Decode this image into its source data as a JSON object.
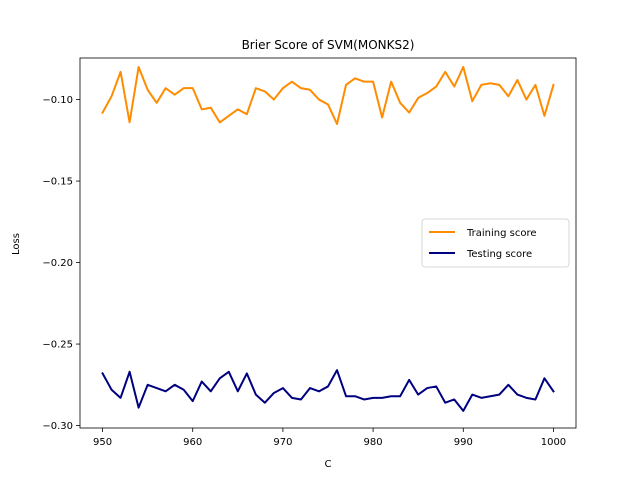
{
  "chart_data": {
    "type": "line",
    "title": "Brier Score of SVM(MONKS2)",
    "xlabel": "C",
    "ylabel": "Loss",
    "xlim": [
      947.5,
      1002.5
    ],
    "ylim": [
      -0.3015,
      -0.0745
    ],
    "xticks": [
      950,
      960,
      970,
      980,
      990,
      1000
    ],
    "yticks": [
      -0.3,
      -0.25,
      -0.2,
      -0.15,
      -0.1
    ],
    "ytick_labels": [
      "−0.30",
      "−0.25",
      "−0.20",
      "−0.15",
      "−0.10"
    ],
    "grid": false,
    "legend_position": "center-right",
    "x": [
      950,
      951,
      952,
      953,
      954,
      955,
      956,
      957,
      958,
      959,
      960,
      961,
      962,
      963,
      964,
      965,
      966,
      967,
      968,
      969,
      970,
      971,
      972,
      973,
      974,
      975,
      976,
      977,
      978,
      979,
      980,
      981,
      982,
      983,
      984,
      985,
      986,
      987,
      988,
      989,
      990,
      991,
      992,
      993,
      994,
      995,
      996,
      997,
      998,
      999,
      1000
    ],
    "series": [
      {
        "name": "Training score",
        "color": "#ff8c00",
        "values": [
          -0.108,
          -0.098,
          -0.083,
          -0.114,
          -0.08,
          -0.094,
          -0.102,
          -0.093,
          -0.097,
          -0.093,
          -0.093,
          -0.106,
          -0.105,
          -0.114,
          -0.11,
          -0.106,
          -0.109,
          -0.093,
          -0.095,
          -0.1,
          -0.093,
          -0.089,
          -0.093,
          -0.094,
          -0.1,
          -0.103,
          -0.115,
          -0.091,
          -0.087,
          -0.089,
          -0.089,
          -0.111,
          -0.089,
          -0.102,
          -0.108,
          -0.099,
          -0.096,
          -0.092,
          -0.083,
          -0.092,
          -0.08,
          -0.101,
          -0.091,
          -0.09,
          -0.091,
          -0.098,
          -0.088,
          -0.1,
          -0.091,
          -0.11,
          -0.091
        ]
      },
      {
        "name": "Testing score",
        "color": "#000080",
        "values": [
          -0.268,
          -0.278,
          -0.283,
          -0.267,
          -0.289,
          -0.275,
          -0.277,
          -0.279,
          -0.275,
          -0.278,
          -0.285,
          -0.273,
          -0.279,
          -0.271,
          -0.267,
          -0.279,
          -0.268,
          -0.281,
          -0.286,
          -0.28,
          -0.277,
          -0.283,
          -0.284,
          -0.277,
          -0.279,
          -0.276,
          -0.266,
          -0.282,
          -0.282,
          -0.284,
          -0.283,
          -0.283,
          -0.282,
          -0.282,
          -0.272,
          -0.281,
          -0.277,
          -0.276,
          -0.286,
          -0.284,
          -0.291,
          -0.281,
          -0.283,
          -0.282,
          -0.281,
          -0.275,
          -0.281,
          -0.283,
          -0.284,
          -0.271,
          -0.279
        ]
      }
    ]
  }
}
